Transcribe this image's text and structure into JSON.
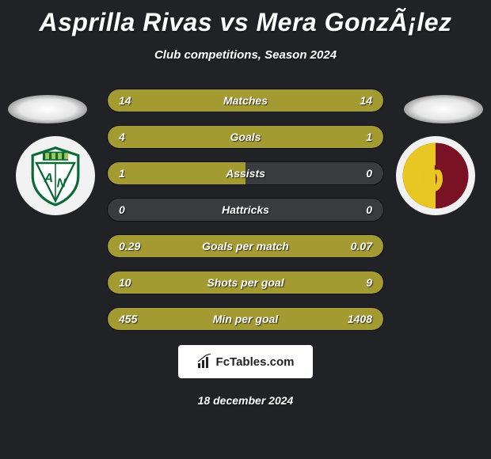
{
  "title": "Asprilla Rivas vs Mera GonzÃ¡lez",
  "subtitle": "Club competitions, Season 2024",
  "date": "18 december 2024",
  "footer_brand": "FcTables.com",
  "fill_color": "#a49a32",
  "bg_track_color": "#3a3b3f",
  "badges": {
    "left_name": "atletico-nacional-badge",
    "right_name": "deportes-tolima-badge"
  },
  "stats": [
    {
      "label": "Matches",
      "left_val": "14",
      "right_val": "14",
      "left_pct": 50,
      "right_pct": 50
    },
    {
      "label": "Goals",
      "left_val": "4",
      "right_val": "1",
      "left_pct": 78,
      "right_pct": 22
    },
    {
      "label": "Assists",
      "left_val": "1",
      "right_val": "0",
      "left_pct": 50,
      "right_pct": 0
    },
    {
      "label": "Hattricks",
      "left_val": "0",
      "right_val": "0",
      "left_pct": 0,
      "right_pct": 0
    },
    {
      "label": "Goals per match",
      "left_val": "0.29",
      "right_val": "0.07",
      "left_pct": 78,
      "right_pct": 22
    },
    {
      "label": "Shots per goal",
      "left_val": "10",
      "right_val": "9",
      "left_pct": 52,
      "right_pct": 48
    },
    {
      "label": "Min per goal",
      "left_val": "455",
      "right_val": "1408",
      "left_pct": 25,
      "right_pct": 75
    }
  ]
}
